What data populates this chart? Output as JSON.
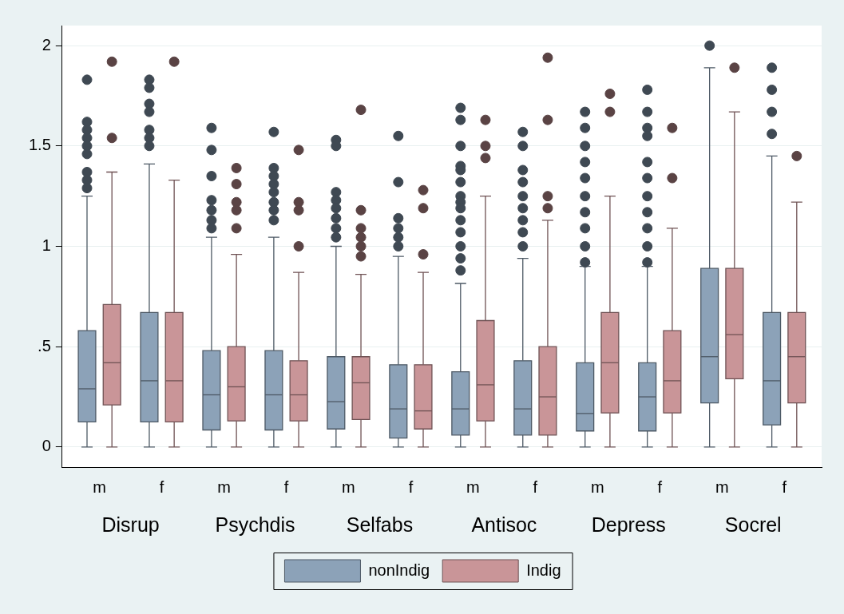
{
  "chart_data": {
    "type": "box",
    "categories": [
      "m",
      "f",
      "m",
      "f",
      "m",
      "f",
      "m",
      "f",
      "m",
      "f",
      "m",
      "f"
    ],
    "annotations": [
      "Disrup",
      "Psychdis",
      "Selfabs",
      "Antisoc",
      "Depress",
      "Socrel"
    ],
    "ylim": [
      -0.1,
      2.1
    ],
    "yticks": [
      0,
      {
        "value": 0.5,
        "label": ".5"
      },
      1,
      1.5,
      2
    ],
    "grid": "y",
    "legend": "bottom",
    "series": [
      {
        "name": "nonIndig",
        "color": "#8ca2b8",
        "boxes": [
          {
            "low": 0,
            "q1": 0.125,
            "median": 0.29,
            "q3": 0.58,
            "high": 1.25,
            "outliers": [
              1.83,
              1.62,
              1.58,
              1.54,
              1.5,
              1.46,
              1.37,
              1.33,
              1.29
            ]
          },
          {
            "low": 0,
            "q1": 0.125,
            "median": 0.33,
            "q3": 0.67,
            "high": 1.41,
            "outliers": [
              1.83,
              1.79,
              1.71,
              1.67,
              1.58,
              1.54,
              1.5
            ]
          },
          {
            "low": 0,
            "q1": 0.085,
            "median": 0.26,
            "q3": 0.48,
            "high": 1.045,
            "outliers": [
              1.59,
              1.48,
              1.35,
              1.23,
              1.18,
              1.13,
              1.09
            ]
          },
          {
            "low": 0,
            "q1": 0.085,
            "median": 0.26,
            "q3": 0.48,
            "high": 1.045,
            "outliers": [
              1.57,
              1.39,
              1.35,
              1.31,
              1.27,
              1.22,
              1.18,
              1.13
            ]
          },
          {
            "low": 0,
            "q1": 0.09,
            "median": 0.226,
            "q3": 0.45,
            "high": 1,
            "outliers": [
              1.53,
              1.5,
              1.27,
              1.23,
              1.19,
              1.14,
              1.09,
              1.045
            ]
          },
          {
            "low": 0,
            "q1": 0.045,
            "median": 0.19,
            "q3": 0.41,
            "high": 0.95,
            "outliers": [
              1.55,
              1.32,
              1.14,
              1.09,
              1.045,
              1
            ]
          },
          {
            "low": 0,
            "q1": 0.06,
            "median": 0.19,
            "q3": 0.375,
            "high": 0.815,
            "outliers": [
              1.69,
              1.63,
              1.5,
              1.4,
              1.38,
              1.32,
              1.25,
              1.22,
              1.19,
              1.13,
              1.07,
              1,
              0.94,
              0.88
            ]
          },
          {
            "low": 0,
            "q1": 0.06,
            "median": 0.19,
            "q3": 0.43,
            "high": 0.94,
            "outliers": [
              1.57,
              1.5,
              1.38,
              1.32,
              1.25,
              1.19,
              1.13,
              1.07,
              1
            ]
          },
          {
            "low": 0,
            "q1": 0.08,
            "median": 0.167,
            "q3": 0.42,
            "high": 0.9,
            "outliers": [
              1.67,
              1.59,
              1.5,
              1.42,
              1.34,
              1.25,
              1.17,
              1.09,
              1,
              0.92
            ]
          },
          {
            "low": 0,
            "q1": 0.08,
            "median": 0.25,
            "q3": 0.42,
            "high": 0.9,
            "outliers": [
              1.78,
              1.67,
              1.59,
              1.55,
              1.42,
              1.34,
              1.25,
              1.17,
              1.09,
              1,
              0.92
            ]
          },
          {
            "low": 0,
            "q1": 0.22,
            "median": 0.45,
            "q3": 0.89,
            "high": 1.89,
            "outliers": [
              2
            ]
          },
          {
            "low": 0,
            "q1": 0.11,
            "median": 0.33,
            "q3": 0.67,
            "high": 1.45,
            "outliers": [
              1.89,
              1.78,
              1.67,
              1.56
            ]
          }
        ]
      },
      {
        "name": "Indig",
        "color": "#c99598",
        "boxes": [
          {
            "low": 0,
            "q1": 0.21,
            "median": 0.42,
            "q3": 0.71,
            "high": 1.37,
            "outliers": [
              1.92,
              1.54
            ]
          },
          {
            "low": 0,
            "q1": 0.125,
            "median": 0.33,
            "q3": 0.67,
            "high": 1.33,
            "outliers": [
              1.92
            ]
          },
          {
            "low": 0,
            "q1": 0.13,
            "median": 0.3,
            "q3": 0.5,
            "high": 0.96,
            "outliers": [
              1.39,
              1.31,
              1.22,
              1.18,
              1.09
            ]
          },
          {
            "low": 0,
            "q1": 0.13,
            "median": 0.26,
            "q3": 0.43,
            "high": 0.87,
            "outliers": [
              1.48,
              1.22,
              1.18,
              1
            ]
          },
          {
            "low": 0,
            "q1": 0.137,
            "median": 0.32,
            "q3": 0.45,
            "high": 0.86,
            "outliers": [
              1.68,
              1.18,
              1.09,
              1.045,
              1,
              0.95
            ]
          },
          {
            "low": 0,
            "q1": 0.09,
            "median": 0.18,
            "q3": 0.41,
            "high": 0.87,
            "outliers": [
              1.28,
              1.19,
              0.96
            ]
          },
          {
            "low": 0,
            "q1": 0.13,
            "median": 0.31,
            "q3": 0.63,
            "high": 1.25,
            "outliers": [
              1.63,
              1.5,
              1.44
            ]
          },
          {
            "low": 0,
            "q1": 0.06,
            "median": 0.25,
            "q3": 0.5,
            "high": 1.13,
            "outliers": [
              1.94,
              1.63,
              1.25,
              1.19
            ]
          },
          {
            "low": 0,
            "q1": 0.17,
            "median": 0.42,
            "q3": 0.67,
            "high": 1.25,
            "outliers": [
              1.76,
              1.67
            ]
          },
          {
            "low": 0,
            "q1": 0.17,
            "median": 0.33,
            "q3": 0.58,
            "high": 1.09,
            "outliers": [
              1.59,
              1.34
            ]
          },
          {
            "low": 0,
            "q1": 0.34,
            "median": 0.56,
            "q3": 0.89,
            "high": 1.67,
            "outliers": [
              1.89
            ]
          },
          {
            "low": 0,
            "q1": 0.22,
            "median": 0.45,
            "q3": 0.67,
            "high": 1.22,
            "outliers": [
              1.45
            ]
          }
        ]
      }
    ]
  }
}
